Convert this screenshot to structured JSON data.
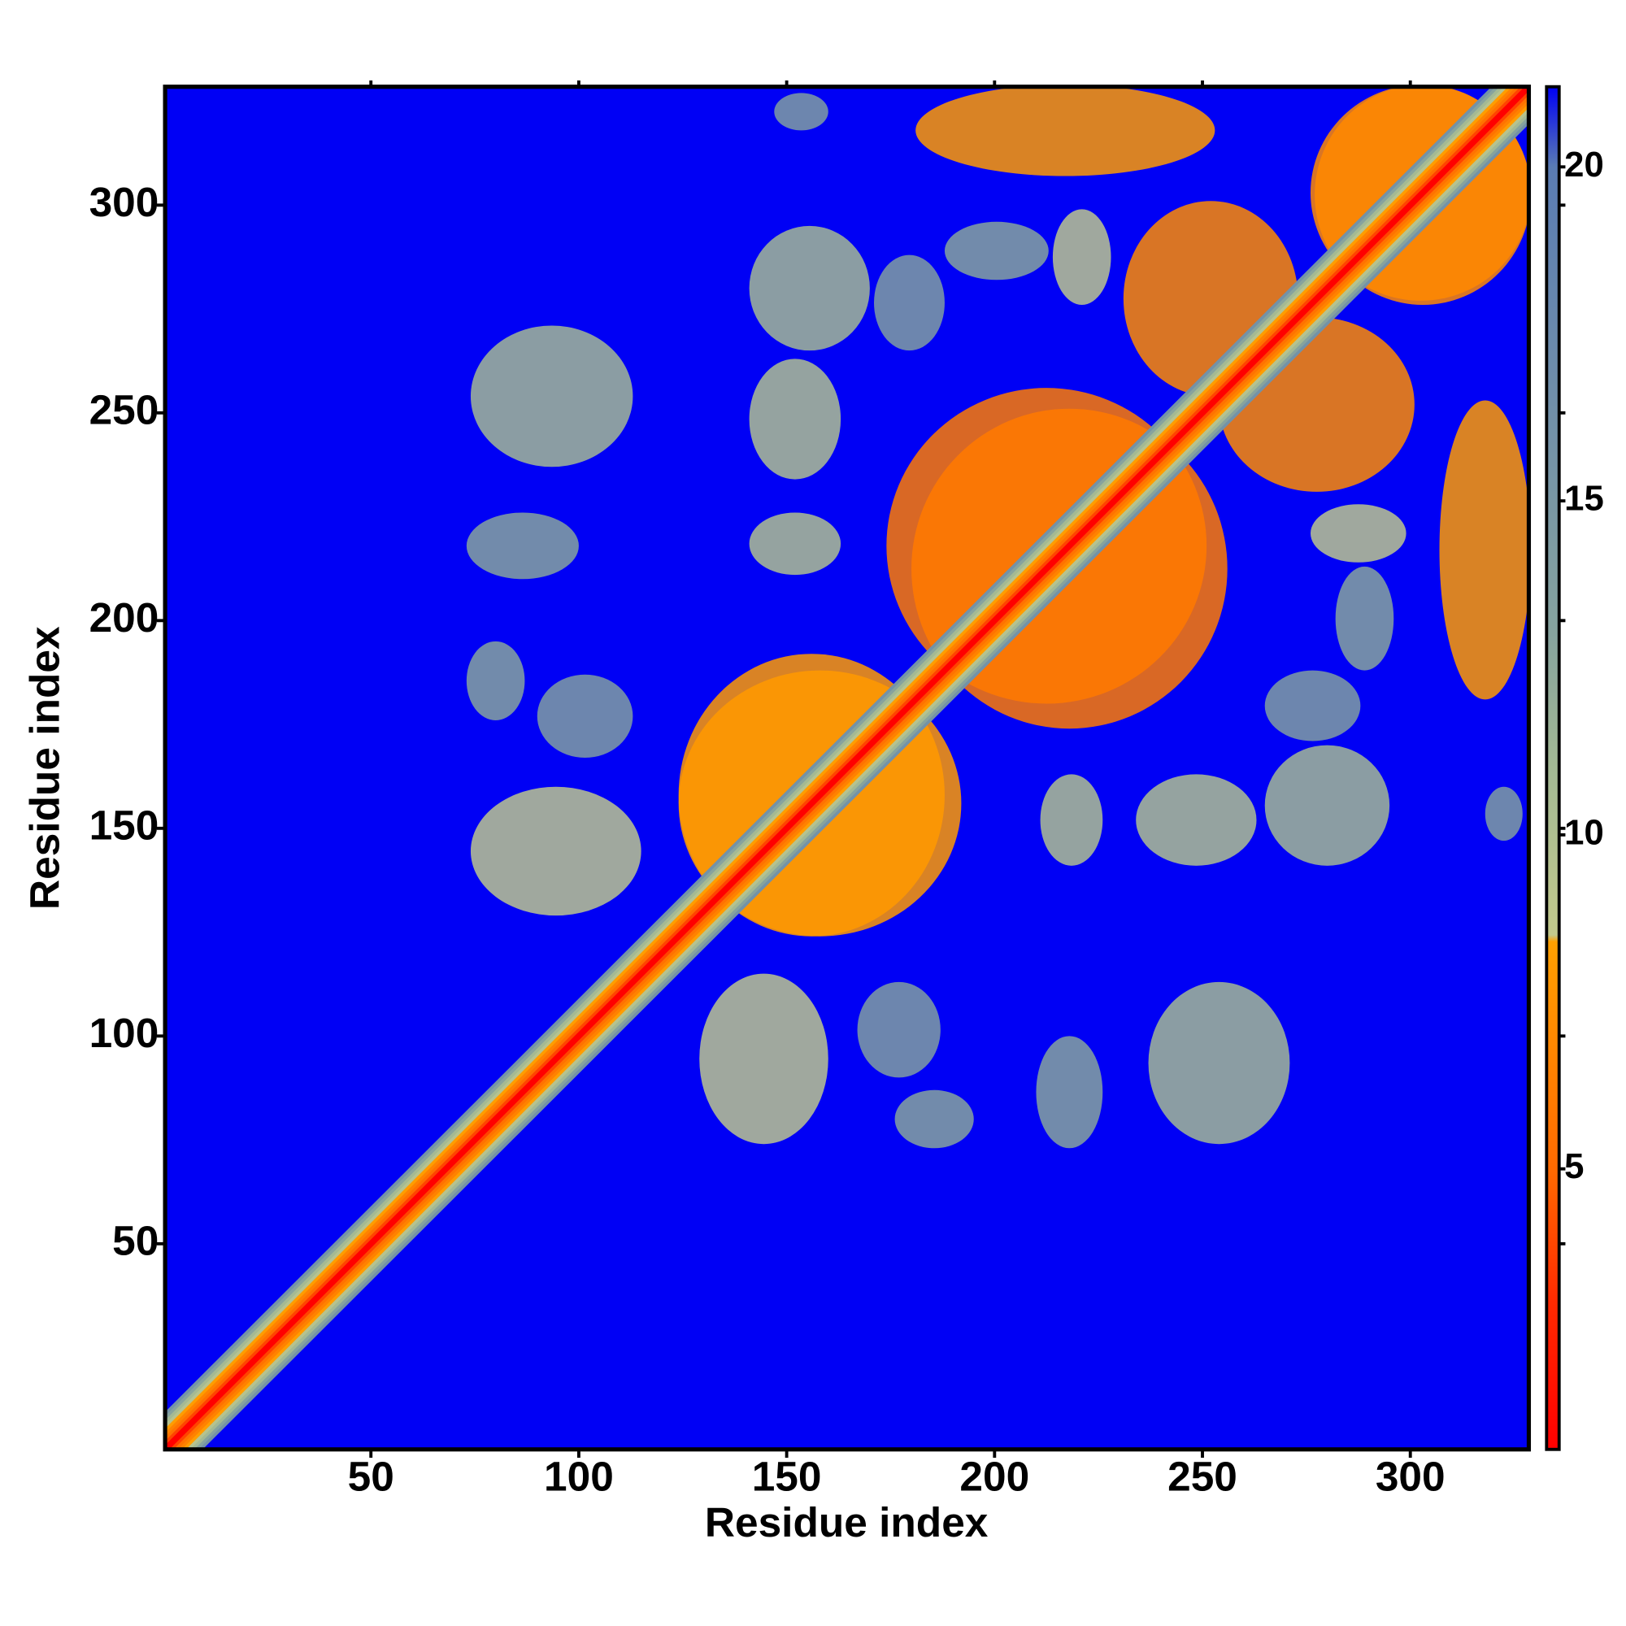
{
  "chart_data": {
    "type": "heatmap",
    "x_label": "Residue index",
    "y_label": "Residue index",
    "xlim": [
      0.5,
      328.5
    ],
    "ylim": [
      0.5,
      328.5
    ],
    "xticks": [
      50,
      100,
      150,
      200,
      250,
      300
    ],
    "yticks": [
      50,
      100,
      150,
      200,
      250,
      300
    ],
    "clim": [
      0.8,
      21.2
    ],
    "cticks": [
      5,
      10,
      15,
      20
    ],
    "colorscale": [
      [
        0.8,
        "#ff0000"
      ],
      [
        3,
        "#ff2a00"
      ],
      [
        5,
        "#ff6a00"
      ],
      [
        8.4,
        "#ffa000"
      ],
      [
        8.5,
        "#c2c98c"
      ],
      [
        11,
        "#a3b994"
      ],
      [
        13,
        "#86a39e"
      ],
      [
        17,
        "#6d8cab"
      ],
      [
        20,
        "#5a7cb3"
      ],
      [
        21.2,
        "#0000f5"
      ]
    ],
    "background_value": 21.2,
    "symmetric": true,
    "diagonal": {
      "offsets": [
        0,
        1,
        2,
        3,
        4,
        5,
        6,
        7,
        8
      ],
      "values": [
        0.8,
        3.8,
        5.5,
        6.5,
        8.2,
        9.5,
        11,
        13,
        16
      ]
    },
    "patches": [
      {
        "x": [
          75,
          112
        ],
        "y": [
          238,
          270
        ],
        "value": 11
      },
      {
        "x": [
          74,
          99
        ],
        "y": [
          211,
          225
        ],
        "value": 13
      },
      {
        "x": [
          74,
          86
        ],
        "y": [
          177,
          194
        ],
        "value": 13
      },
      {
        "x": [
          91,
          112
        ],
        "y": [
          168,
          186
        ],
        "value": 14
      },
      {
        "x": [
          75,
          114
        ],
        "y": [
          130,
          159
        ],
        "value": 9
      },
      {
        "x": [
          142,
          169
        ],
        "y": [
          266,
          294
        ],
        "value": 11
      },
      {
        "x": [
          142,
          162
        ],
        "y": [
          235,
          262
        ],
        "value": 10
      },
      {
        "x": [
          142,
          162
        ],
        "y": [
          212,
          225
        ],
        "value": 10
      },
      {
        "x": [
          125,
          187
        ],
        "y": [
          125,
          191
        ],
        "value": 8
      },
      {
        "x": [
          148,
          159
        ],
        "y": [
          319,
          326
        ],
        "value": 14
      },
      {
        "x": [
          182,
          252
        ],
        "y": [
          308,
          328
        ],
        "value": 8
      },
      {
        "x": [
          172,
          187
        ],
        "y": [
          266,
          287
        ],
        "value": 14
      },
      {
        "x": [
          189,
          212
        ],
        "y": [
          283,
          295
        ],
        "value": 13
      },
      {
        "x": [
          215,
          227
        ],
        "y": [
          277,
          298
        ],
        "value": 9
      },
      {
        "x": [
          232,
          272
        ],
        "y": [
          255,
          300
        ],
        "value": 7
      },
      {
        "x": [
          277,
          328
        ],
        "y": [
          278,
          328
        ],
        "value": 7
      },
      {
        "x": [
          181,
          255
        ],
        "y": [
          175,
          250
        ],
        "value": 6
      }
    ]
  }
}
